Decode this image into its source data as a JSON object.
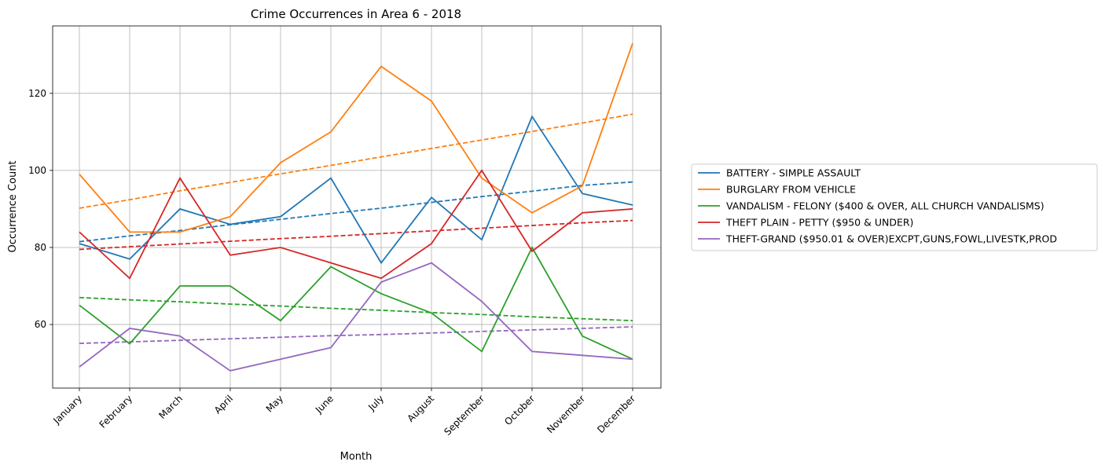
{
  "chart_data": {
    "type": "line",
    "title": "Crime Occurrences in Area 6 - 2018",
    "xlabel": "Month",
    "ylabel": "Occurrence Count",
    "categories": [
      "January",
      "February",
      "March",
      "April",
      "May",
      "June",
      "July",
      "August",
      "September",
      "October",
      "November",
      "December"
    ],
    "ylim": [
      43.5,
      137.5
    ],
    "y_ticks": [
      60,
      80,
      100,
      120
    ],
    "grid": true,
    "legend_placement": "right, outside plot",
    "series": [
      {
        "name": "BATTERY - SIMPLE ASSAULT",
        "color": "#1f77b4",
        "values": [
          81,
          77,
          90,
          86,
          88,
          98,
          76,
          93,
          82,
          114,
          94,
          91
        ],
        "trend": [
          81.5,
          83.0,
          84.4,
          85.9,
          87.3,
          88.8,
          90.2,
          91.7,
          93.2,
          94.6,
          96.1,
          97.0
        ]
      },
      {
        "name": "BURGLARY FROM VEHICLE",
        "color": "#ff7f0e",
        "values": [
          99,
          84,
          84,
          88,
          102,
          110,
          127,
          118,
          98,
          89,
          96,
          133
        ],
        "trend": [
          90.2,
          92.4,
          94.7,
          96.9,
          99.1,
          101.3,
          103.5,
          105.7,
          107.9,
          110.1,
          112.3,
          114.6
        ]
      },
      {
        "name": "VANDALISM - FELONY ($400 & OVER, ALL CHURCH VANDALISMS)",
        "color": "#2ca02c",
        "values": [
          65,
          55,
          70,
          70,
          61,
          75,
          68,
          63,
          53,
          80,
          57,
          51
        ],
        "trend": [
          67.0,
          66.4,
          65.9,
          65.3,
          64.8,
          64.2,
          63.7,
          63.1,
          62.6,
          62.0,
          61.5,
          61.0
        ]
      },
      {
        "name": "THEFT PLAIN - PETTY ($950 & UNDER)",
        "color": "#d62728",
        "values": [
          84,
          72,
          98,
          78,
          80,
          76,
          72,
          81,
          100,
          79,
          89,
          90
        ],
        "trend": [
          79.5,
          80.2,
          80.9,
          81.6,
          82.3,
          82.9,
          83.6,
          84.3,
          85.0,
          85.7,
          86.4,
          87.0
        ]
      },
      {
        "name": "THEFT-GRAND ($950.01 & OVER)EXCPT,GUNS,FOWL,LIVESTK,PROD",
        "color": "#9467bd",
        "values": [
          49,
          59,
          57,
          48,
          51,
          54,
          71,
          76,
          66,
          53,
          52,
          51
        ],
        "trend": [
          55.1,
          55.5,
          55.9,
          56.3,
          56.7,
          57.1,
          57.4,
          57.8,
          58.2,
          58.6,
          59.0,
          59.4
        ]
      }
    ]
  }
}
